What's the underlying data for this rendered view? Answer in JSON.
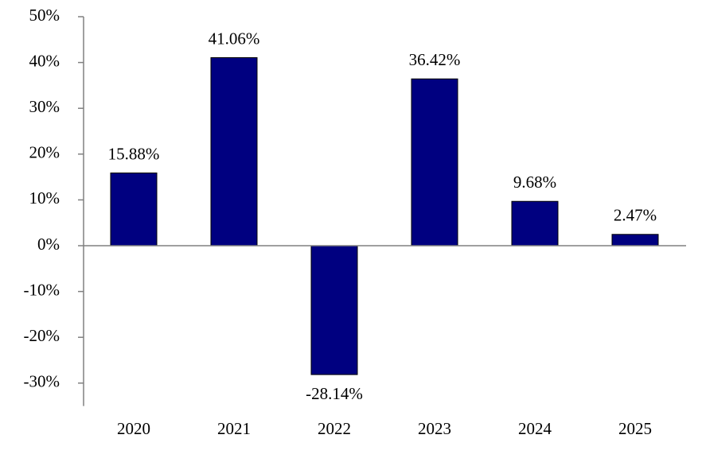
{
  "chart_data": {
    "type": "bar",
    "categories": [
      "2020",
      "2021",
      "2022",
      "2023",
      "2024",
      "2025"
    ],
    "values": [
      15.88,
      41.06,
      -28.14,
      36.42,
      9.68,
      2.47
    ],
    "value_labels": [
      "15.88%",
      "41.06%",
      "-28.14%",
      "36.42%",
      "9.68%",
      "2.47%"
    ],
    "color": "#000080",
    "ylim": [
      -35,
      50
    ],
    "yticks": [
      {
        "value": -30,
        "label": "-30%"
      },
      {
        "value": -20,
        "label": "-20%"
      },
      {
        "value": -10,
        "label": "-10%"
      },
      {
        "value": 0,
        "label": "0%"
      },
      {
        "value": 10,
        "label": "10%"
      },
      {
        "value": 20,
        "label": "20%"
      },
      {
        "value": 30,
        "label": "30%"
      },
      {
        "value": 40,
        "label": "40%"
      },
      {
        "value": 50,
        "label": "50%"
      }
    ],
    "grid": false
  }
}
